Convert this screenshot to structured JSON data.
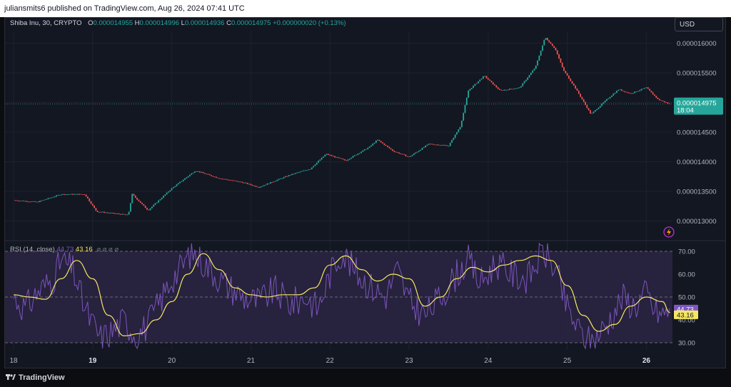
{
  "header": {
    "published_text": "juliansmits6 published on TradingView.com, Aug 26, 2024 07:41 UTC"
  },
  "legend": {
    "symbol": "Shiba Inu, 30, CRYPTO",
    "open_key": "O",
    "open": "0.000014955",
    "high_key": "H",
    "high": "0.000014996",
    "low_key": "L",
    "low": "0.000014936",
    "close_key": "C",
    "close": "0.000014975",
    "change": "+0.000000020 (+0.13%)"
  },
  "currency_button": "USD",
  "rsi_legend": {
    "label": "RSI (14, close)",
    "rsi_value": "44.73",
    "ma_value": "43.16",
    "hidden_icons": "⌀ ⌀ ⌀ ⌀"
  },
  "price_scale": {
    "ticks": [
      "0.000016000",
      "0.000015500",
      "0.000015000",
      "0.000014500",
      "0.000014000",
      "0.000013500",
      "0.000013000"
    ],
    "last_price_label": "0.000014975",
    "countdown": "18:04"
  },
  "rsi_scale": {
    "ticks": [
      "70.00",
      "60.00",
      "50.00",
      "40.00",
      "30.00"
    ]
  },
  "time_axis": {
    "ticks": [
      "18",
      "19",
      "20",
      "21",
      "22",
      "23",
      "24",
      "25",
      "26"
    ],
    "bold": [
      "19",
      "26"
    ]
  },
  "footer": {
    "brand": "TradingView"
  },
  "colors": {
    "up": "#26a69a",
    "down": "#ef5350",
    "rsi": "#7e57c2",
    "rsi_ma": "#f5e663",
    "rsi_band": "#2a2340",
    "last_price_bg": "#26a69a",
    "rsi_value_bg": "#7e57c2",
    "ma_value_bg": "#f5e663"
  },
  "chart_data": [
    {
      "type": "candlestick",
      "title": "Shiba Inu, 30, CRYPTO",
      "x_unit": "day of month (Aug 2024)",
      "ylim": [
        1.28e-05,
        1.62e-05
      ],
      "grid": true,
      "key_points": [
        [
          18.0,
          1.335e-05
        ],
        [
          18.3,
          1.332e-05
        ],
        [
          18.6,
          1.345e-05
        ],
        [
          18.9,
          1.345e-05
        ],
        [
          19.05,
          1.316e-05
        ],
        [
          19.45,
          1.31e-05
        ],
        [
          19.5,
          1.345e-05
        ],
        [
          19.7,
          1.318e-05
        ],
        [
          20.0,
          1.355e-05
        ],
        [
          20.3,
          1.385e-05
        ],
        [
          20.6,
          1.372e-05
        ],
        [
          20.9,
          1.365e-05
        ],
        [
          21.1,
          1.357e-05
        ],
        [
          21.5,
          1.378e-05
        ],
        [
          21.75,
          1.388e-05
        ],
        [
          21.95,
          1.413e-05
        ],
        [
          22.2,
          1.402e-05
        ],
        [
          22.5,
          1.425e-05
        ],
        [
          22.6,
          1.437e-05
        ],
        [
          22.8,
          1.418e-05
        ],
        [
          23.0,
          1.408e-05
        ],
        [
          23.25,
          1.43e-05
        ],
        [
          23.5,
          1.427e-05
        ],
        [
          23.65,
          1.46e-05
        ],
        [
          23.75,
          1.52e-05
        ],
        [
          23.95,
          1.545e-05
        ],
        [
          24.15,
          1.52e-05
        ],
        [
          24.4,
          1.525e-05
        ],
        [
          24.6,
          1.56e-05
        ],
        [
          24.72,
          1.61e-05
        ],
        [
          24.85,
          1.59e-05
        ],
        [
          24.95,
          1.555e-05
        ],
        [
          25.1,
          1.525e-05
        ],
        [
          25.3,
          1.48e-05
        ],
        [
          25.5,
          1.505e-05
        ],
        [
          25.65,
          1.522e-05
        ],
        [
          25.8,
          1.515e-05
        ],
        [
          26.0,
          1.525e-05
        ],
        [
          26.15,
          1.505e-05
        ],
        [
          26.3,
          1.497e-05
        ]
      ],
      "last_price": 1.4975e-05
    },
    {
      "type": "line",
      "title": "RSI (14, close)",
      "ylim": [
        26,
        74
      ],
      "guides": [
        70,
        50,
        30
      ],
      "band": [
        30,
        70
      ],
      "series": [
        {
          "name": "RSI",
          "x": [
            18.0,
            18.15,
            18.3,
            18.5,
            18.6,
            18.75,
            18.9,
            19.0,
            19.1,
            19.25,
            19.4,
            19.55,
            19.7,
            19.85,
            20.0,
            20.1,
            20.25,
            20.4,
            20.55,
            20.7,
            20.9,
            21.1,
            21.3,
            21.5,
            21.7,
            21.85,
            22.0,
            22.15,
            22.3,
            22.5,
            22.7,
            22.85,
            23.0,
            23.2,
            23.4,
            23.6,
            23.75,
            23.9,
            24.1,
            24.3,
            24.5,
            24.7,
            24.85,
            25.0,
            25.15,
            25.3,
            25.5,
            25.7,
            25.85,
            26.0,
            26.1,
            26.2,
            26.3
          ],
          "y": [
            50,
            45,
            52,
            58,
            66,
            62,
            45,
            38,
            32,
            35,
            40,
            33,
            38,
            48,
            58,
            62,
            70,
            65,
            60,
            55,
            50,
            48,
            53,
            47,
            50,
            45,
            60,
            70,
            62,
            55,
            50,
            62,
            48,
            42,
            50,
            60,
            66,
            56,
            65,
            60,
            58,
            70,
            62,
            45,
            35,
            30,
            38,
            50,
            46,
            52,
            44,
            42,
            44.73
          ]
        },
        {
          "name": "RSI-based MA",
          "x": [
            18.0,
            18.2,
            18.4,
            18.6,
            18.8,
            19.0,
            19.2,
            19.4,
            19.6,
            19.8,
            20.0,
            20.2,
            20.4,
            20.6,
            20.8,
            21.0,
            21.2,
            21.4,
            21.6,
            21.8,
            22.0,
            22.2,
            22.4,
            22.6,
            22.8,
            23.0,
            23.2,
            23.4,
            23.6,
            23.8,
            24.0,
            24.2,
            24.4,
            24.6,
            24.8,
            25.0,
            25.2,
            25.4,
            25.6,
            25.8,
            26.0,
            26.2,
            26.3
          ],
          "y": [
            51,
            50,
            49,
            58,
            66,
            58,
            42,
            33,
            34,
            40,
            48,
            60,
            69,
            62,
            54,
            51,
            50,
            51,
            51,
            54,
            64,
            68,
            62,
            57,
            60,
            58,
            46,
            50,
            58,
            63,
            61,
            64,
            66,
            68,
            66,
            55,
            42,
            35,
            38,
            46,
            50,
            48,
            43.16
          ]
        }
      ]
    }
  ]
}
